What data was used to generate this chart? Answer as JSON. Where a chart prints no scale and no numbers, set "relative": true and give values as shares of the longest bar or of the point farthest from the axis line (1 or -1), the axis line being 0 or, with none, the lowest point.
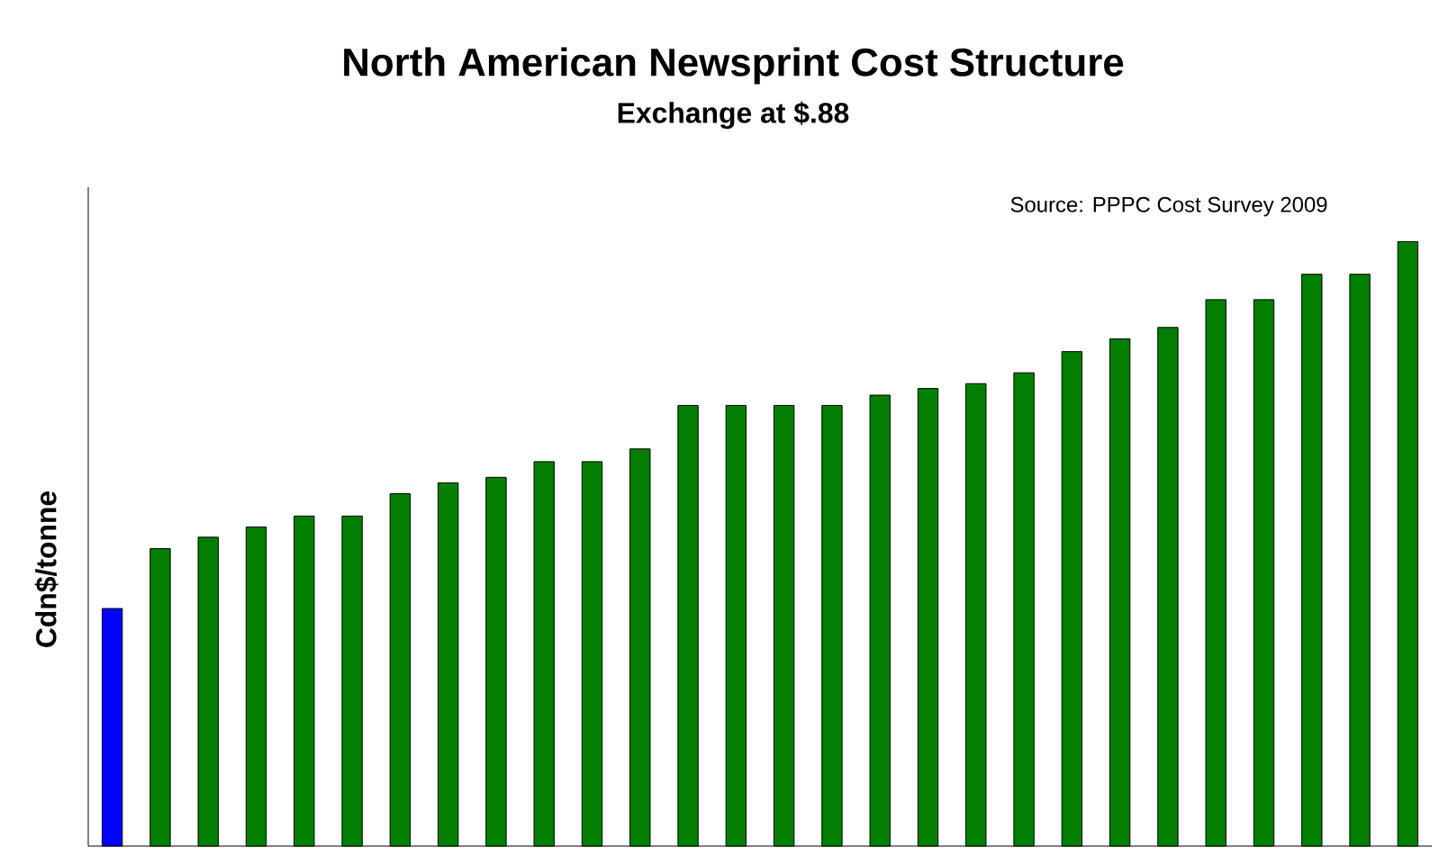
{
  "chart_data": {
    "type": "bar",
    "title": "North American Newsprint Cost Structure",
    "subtitle": "Exchange at $.88",
    "ylabel": "Cdn$/tonne",
    "relative": true,
    "annotations": [
      "Source: PPPC Cost Survey 2009"
    ],
    "categories": [
      null,
      null,
      null,
      null,
      null,
      null,
      null,
      null,
      null,
      null,
      null,
      null,
      null,
      null,
      null,
      null,
      null,
      null,
      null,
      null,
      null,
      null,
      null,
      null,
      null,
      null,
      null,
      null
    ],
    "values": [
      0.393,
      0.492,
      0.511,
      0.528,
      0.546,
      0.546,
      0.583,
      0.601,
      0.61,
      0.636,
      0.636,
      0.657,
      0.729,
      0.729,
      0.729,
      0.729,
      0.746,
      0.757,
      0.765,
      0.783,
      0.818,
      0.839,
      0.858,
      0.904,
      0.904,
      0.946,
      0.946,
      1
    ],
    "colors": [
      "#0000ff",
      "#007f00",
      "#007f00",
      "#007f00",
      "#007f00",
      "#007f00",
      "#007f00",
      "#007f00",
      "#007f00",
      "#007f00",
      "#007f00",
      "#007f00",
      "#007f00",
      "#007f00",
      "#007f00",
      "#007f00",
      "#007f00",
      "#007f00",
      "#007f00",
      "#007f00",
      "#007f00",
      "#007f00",
      "#007f00",
      "#007f00",
      "#007f00",
      "#007f00",
      "#007f00",
      "#007f00"
    ]
  }
}
